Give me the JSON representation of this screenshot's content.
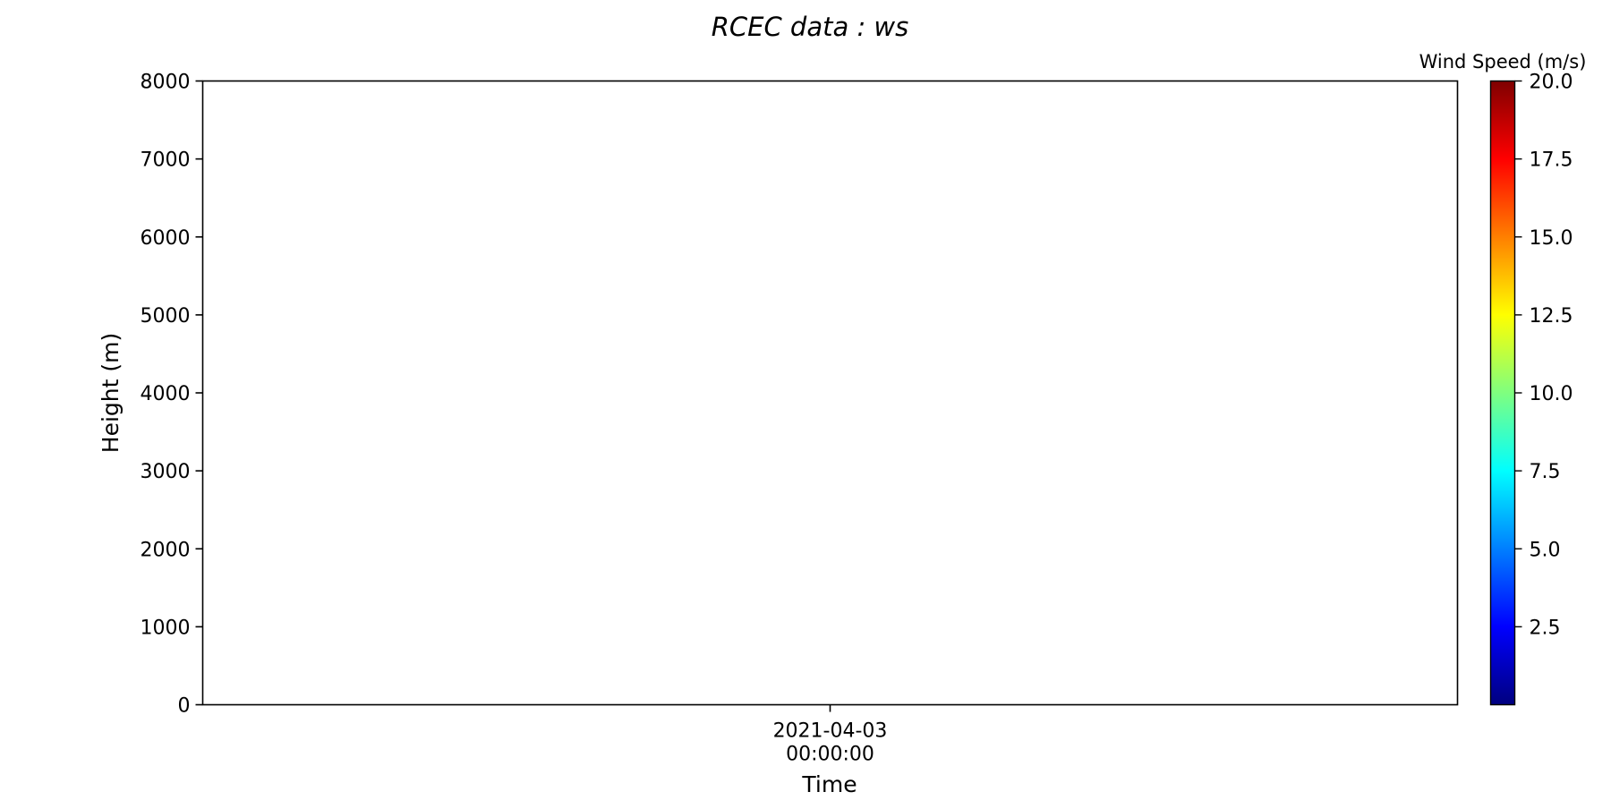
{
  "chart_data": {
    "type": "heatmap",
    "title": "RCEC data : ws",
    "xlabel": "Time",
    "ylabel": "Height (m)",
    "x_ticks": [
      {
        "line1": "2021-04-03",
        "line2": "00:00:00"
      }
    ],
    "y_ticks": [
      0,
      1000,
      2000,
      3000,
      4000,
      5000,
      6000,
      7000,
      8000
    ],
    "ylim": [
      0,
      8000
    ],
    "colorbar": {
      "label": "Wind Speed (m/s)",
      "colormap": "jet",
      "range": [
        0.0,
        20.0
      ],
      "ticks": [
        "2.5",
        "5.0",
        "7.5",
        "10.0",
        "12.5",
        "15.0",
        "17.5",
        "20.0"
      ],
      "colors": [
        "#00007f",
        "#0000ff",
        "#007fff",
        "#00ffff",
        "#7fff7f",
        "#ffff00",
        "#ff7f00",
        "#ff0000",
        "#7f0000"
      ]
    },
    "values": [],
    "grid": false
  }
}
